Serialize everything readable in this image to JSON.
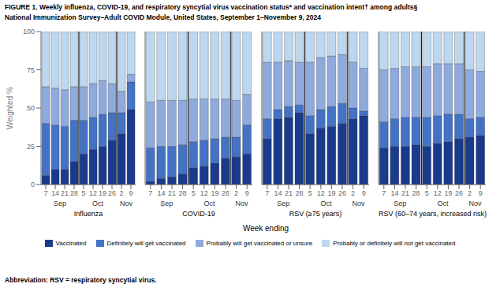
{
  "title": "FIGURE 1. Weekly influenza, COVID-19, and respiratory syncytial virus vaccination status* and vaccination intent† among adults§",
  "subtitle": "National Immunization Survey–Adult COVID Module, United States, September 1–November 9, 2024",
  "xlabel": "Week ending",
  "annotations": [
    "Abbreviation: RSV = respiratory syncytial virus."
  ],
  "chart_data": [
    {
      "type": "bar",
      "stacked": true,
      "title": "Influenza",
      "ylabel": "Weighted %",
      "categories": [
        "7",
        "14",
        "21",
        "28",
        "5",
        "12",
        "19",
        "26",
        "2",
        "9"
      ],
      "ylim": [
        0,
        100
      ],
      "yticks": [
        0,
        25,
        50,
        75,
        100
      ],
      "annotations": [
        {
          "text": "Sep",
          "first": "7",
          "last": "28"
        },
        {
          "text": "Oct",
          "first": "5",
          "last": "26"
        },
        {
          "text": "Nov",
          "first": "2",
          "last": "9"
        }
      ],
      "series": [
        {
          "name": "Vaccinated",
          "color": "#1a3a8c",
          "values": [
            6,
            10,
            10,
            15,
            20,
            23,
            25,
            29,
            33,
            49
          ]
        },
        {
          "name": "Definitely will get vaccinated",
          "color": "#4472c4",
          "values": [
            34,
            29,
            28,
            27,
            22,
            21,
            21,
            18,
            14,
            18
          ]
        },
        {
          "name": "Probably will get vaccinated or unsure",
          "color": "#8faadc",
          "values": [
            24,
            24,
            24,
            22,
            22,
            22,
            22,
            19,
            14,
            5
          ]
        },
        {
          "name": "Probably or definitely will not get vaccinated",
          "color": "#bdd7ee",
          "values": [
            36,
            37,
            38,
            36,
            36,
            34,
            32,
            34,
            39,
            28
          ]
        }
      ]
    },
    {
      "type": "bar",
      "stacked": true,
      "title": "COVID-19",
      "tick_labels": "x",
      "categories": [
        "7",
        "14",
        "21",
        "28",
        "5",
        "12",
        "19",
        "26",
        "2",
        "9"
      ],
      "ylim": [
        0,
        100
      ],
      "yticks": [
        0,
        25,
        50,
        75,
        100
      ],
      "annotations": [
        {
          "text": "Sep",
          "first": "7",
          "last": "28"
        },
        {
          "text": "Oct",
          "first": "5",
          "last": "26"
        },
        {
          "text": "Nov",
          "first": "2",
          "last": "9"
        }
      ],
      "series": [
        {
          "name": "Vaccinated",
          "color": "#1a3a8c",
          "values": [
            2,
            4,
            5,
            7,
            11,
            12,
            14,
            17,
            18,
            20
          ]
        },
        {
          "name": "Definitely will get vaccinated",
          "color": "#4472c4",
          "values": [
            22,
            21,
            20,
            19,
            17,
            17,
            16,
            14,
            13,
            19
          ]
        },
        {
          "name": "Probably will get vaccinated or unsure",
          "color": "#8faadc",
          "values": [
            30,
            30,
            30,
            29,
            28,
            27,
            26,
            25,
            24,
            20
          ]
        },
        {
          "name": "Probably or definitely will not get vaccinated",
          "color": "#bdd7ee",
          "values": [
            46,
            45,
            45,
            45,
            44,
            44,
            44,
            44,
            45,
            41
          ]
        }
      ]
    },
    {
      "type": "bar",
      "stacked": true,
      "title": "RSV (≥75 years)",
      "tick_labels": "x",
      "categories": [
        "7",
        "14",
        "21",
        "28",
        "5",
        "12",
        "19",
        "26",
        "2",
        "9"
      ],
      "ylim": [
        0,
        100
      ],
      "yticks": [
        0,
        25,
        50,
        75,
        100
      ],
      "annotations": [
        {
          "text": "Sep",
          "first": "7",
          "last": "28"
        },
        {
          "text": "Oct",
          "first": "5",
          "last": "26"
        },
        {
          "text": "Nov",
          "first": "2",
          "last": "9"
        }
      ],
      "series": [
        {
          "name": "Vaccinated",
          "color": "#1a3a8c",
          "values": [
            30,
            43,
            44,
            47,
            33,
            37,
            38,
            40,
            43,
            45
          ]
        },
        {
          "name": "Definitely will get vaccinated",
          "color": "#4472c4",
          "values": [
            13,
            6,
            7,
            5,
            12,
            12,
            13,
            13,
            7,
            3
          ]
        },
        {
          "name": "Probably will get vaccinated or unsure",
          "color": "#8faadc",
          "values": [
            37,
            31,
            30,
            28,
            35,
            34,
            33,
            32,
            30,
            28
          ]
        },
        {
          "name": "Probably or definitely will not get vaccinated",
          "color": "#bdd7ee",
          "values": [
            20,
            20,
            19,
            20,
            20,
            17,
            16,
            15,
            20,
            24
          ]
        }
      ]
    },
    {
      "type": "bar",
      "stacked": true,
      "title": "RSV (60–74 years, increased risk)",
      "tick_labels": "x",
      "categories": [
        "7",
        "14",
        "21",
        "28",
        "5",
        "12",
        "19",
        "26",
        "2",
        "9"
      ],
      "ylim": [
        0,
        100
      ],
      "yticks": [
        0,
        25,
        50,
        75,
        100
      ],
      "annotations": [
        {
          "text": "Sep",
          "first": "7",
          "last": "28"
        },
        {
          "text": "Oct",
          "first": "5",
          "last": "26"
        },
        {
          "text": "Nov",
          "first": "2",
          "last": "9"
        }
      ],
      "series": [
        {
          "name": "Vaccinated",
          "color": "#1a3a8c",
          "values": [
            24,
            25,
            25,
            26,
            25,
            27,
            28,
            30,
            31,
            32
          ]
        },
        {
          "name": "Definitely will get vaccinated",
          "color": "#4472c4",
          "values": [
            17,
            18,
            19,
            18,
            19,
            18,
            18,
            16,
            12,
            12
          ]
        },
        {
          "name": "Probably will get vaccinated or unsure",
          "color": "#8faadc",
          "values": [
            34,
            33,
            33,
            33,
            33,
            34,
            33,
            33,
            32,
            30
          ]
        },
        {
          "name": "Probably or definitely will not get vaccinated",
          "color": "#bdd7ee",
          "values": [
            25,
            24,
            23,
            23,
            23,
            21,
            21,
            21,
            25,
            26
          ]
        }
      ]
    }
  ]
}
